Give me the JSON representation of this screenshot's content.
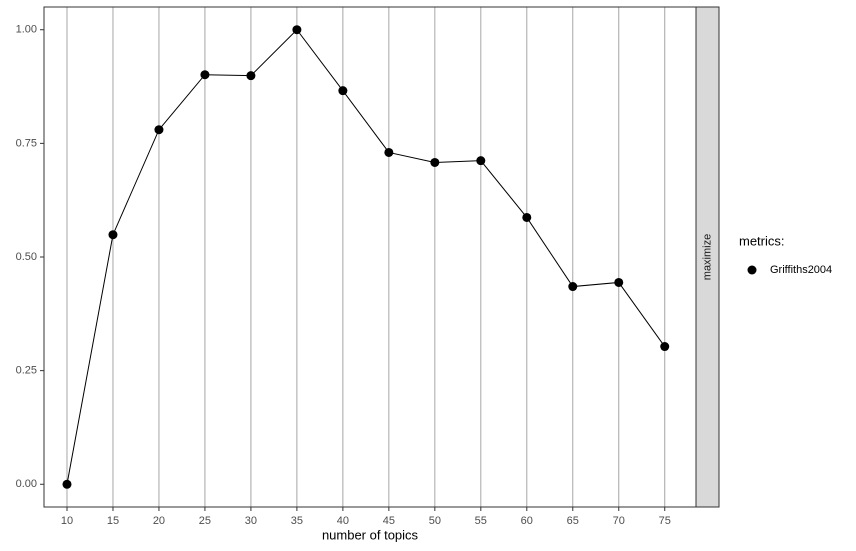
{
  "chart_data": {
    "type": "line",
    "x_label": "number of topics",
    "facet_label": "maximize",
    "legend_title": "metrics:",
    "x": [
      10,
      15,
      20,
      25,
      30,
      35,
      40,
      45,
      50,
      55,
      60,
      65,
      70,
      75
    ],
    "series": [
      {
        "name": "Griffiths2004",
        "color": "#000000",
        "values": [
          0,
          0.549,
          0.78,
          0.901,
          0.899,
          1.0,
          0.866,
          0.73,
          0.708,
          0.712,
          0.587,
          0.435,
          0.444,
          0.303
        ]
      }
    ],
    "xlim": [
      7.5,
      78.4
    ],
    "ylim": [
      -0.05,
      1.05
    ],
    "xticks": [
      10,
      15,
      20,
      25,
      30,
      35,
      40,
      45,
      50,
      55,
      60,
      65,
      70,
      75
    ],
    "yticks": [
      {
        "value": 0,
        "label": "0.00"
      },
      {
        "value": 0.25,
        "label": "0.25"
      },
      {
        "value": 0.5,
        "label": "0.50"
      },
      {
        "value": 0.75,
        "label": "0.75"
      },
      {
        "value": 1,
        "label": "1.00"
      }
    ],
    "grid": "x"
  }
}
